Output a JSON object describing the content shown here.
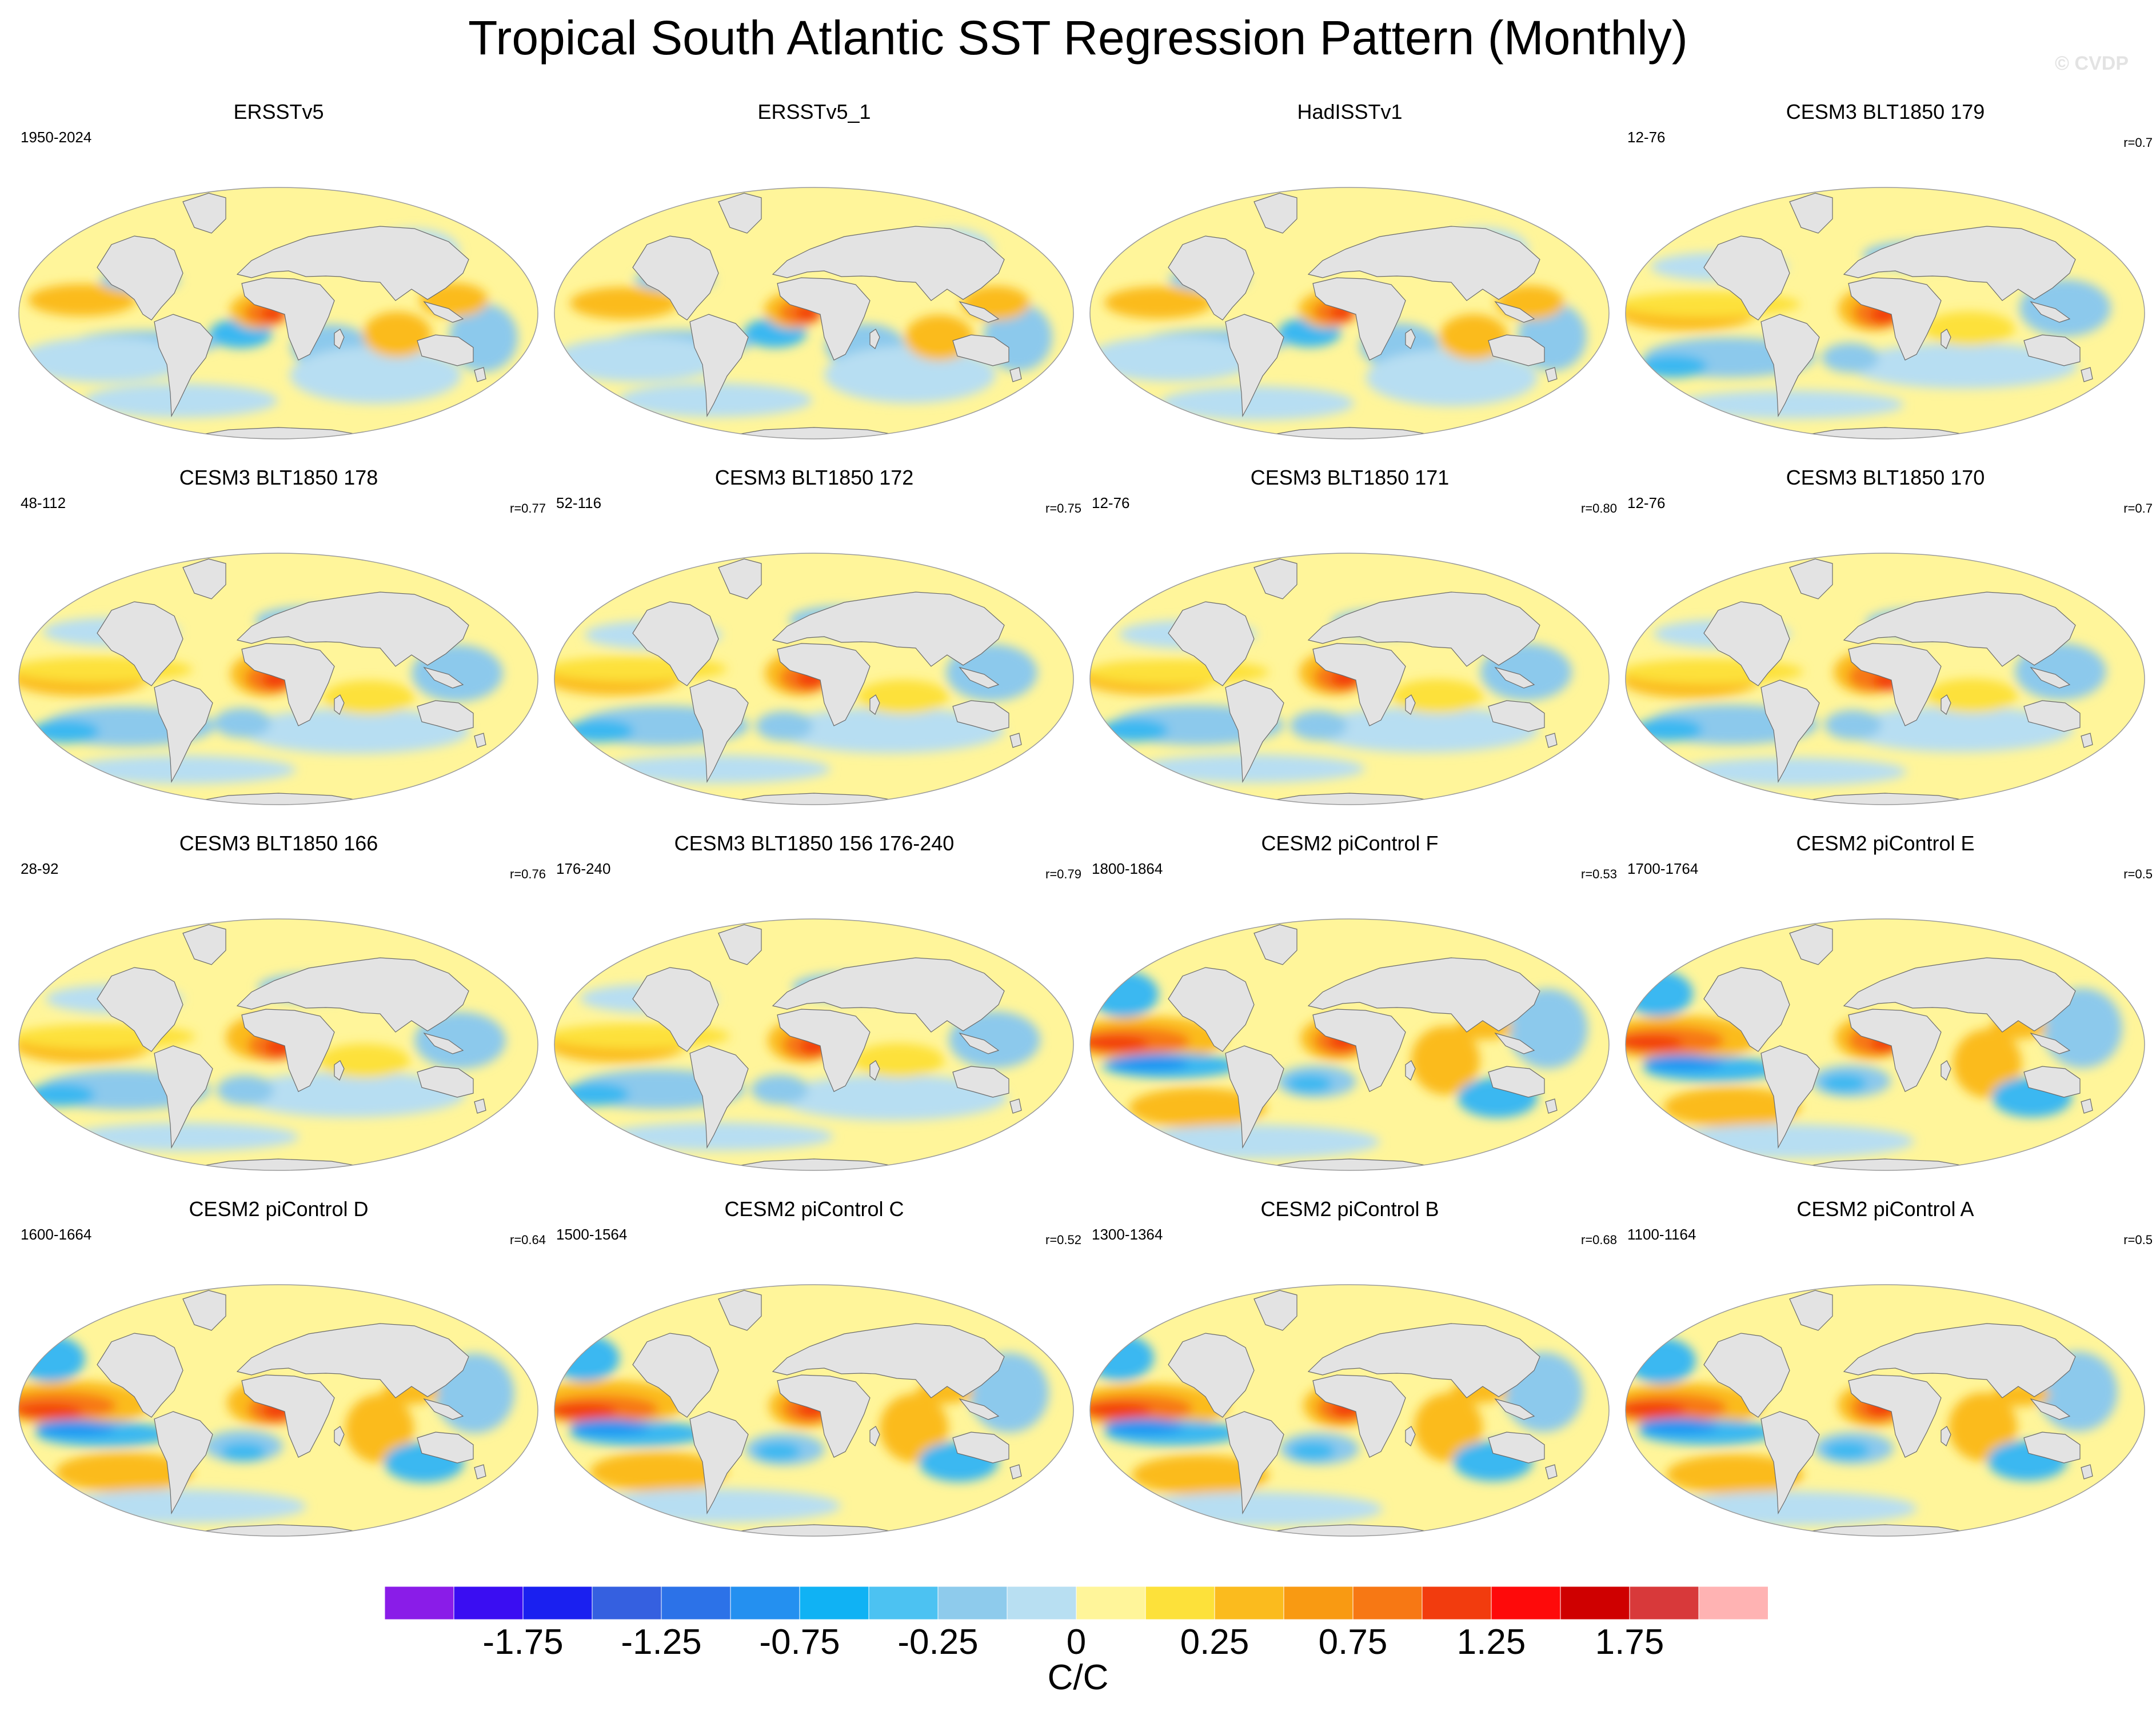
{
  "figure": {
    "title": "Tropical South Atlantic SST Regression Pattern (Monthly)",
    "watermark": "© CVDP"
  },
  "palette": {
    "ocean_light_yellow": "#fff59a",
    "yellow": "#fde13a",
    "amber": "#fbbb1e",
    "orange": "#f99a12",
    "dark_orange": "#f77814",
    "red_orange": "#f23c0e",
    "red": "#e11010",
    "light_blue": "#b7def2",
    "mid_blue": "#8cc9ec",
    "blue": "#3bb8f1",
    "deep_blue": "#1f94f2",
    "land": "#e3e3e3",
    "coast": "#6a6a6a"
  },
  "panels": [
    {
      "title": "ERSSTv5",
      "period": "1950-2024",
      "corr": "",
      "style": "obs"
    },
    {
      "title": "ERSSTv5_1",
      "period": "",
      "corr": "",
      "style": "obs"
    },
    {
      "title": "HadISSTv1",
      "period": "",
      "corr": "",
      "style": "obs"
    },
    {
      "title": "CESM3 BLT1850 179",
      "period": "12-76",
      "corr": "r=0.7",
      "style": "cesm3"
    },
    {
      "title": "CESM3 BLT1850 178",
      "period": "48-112",
      "corr": "r=0.77",
      "style": "cesm3"
    },
    {
      "title": "CESM3 BLT1850 172",
      "period": "52-116",
      "corr": "r=0.75",
      "style": "cesm3"
    },
    {
      "title": "CESM3 BLT1850 171",
      "period": "12-76",
      "corr": "r=0.80",
      "style": "cesm3"
    },
    {
      "title": "CESM3 BLT1850 170",
      "period": "12-76",
      "corr": "r=0.7",
      "style": "cesm3"
    },
    {
      "title": "CESM3 BLT1850 166",
      "period": "28-92",
      "corr": "r=0.76",
      "style": "cesm3"
    },
    {
      "title": "CESM3 BLT1850 156 176-240",
      "period": "176-240",
      "corr": "r=0.79",
      "style": "cesm3"
    },
    {
      "title": "CESM2 piControl F",
      "period": "1800-1864",
      "corr": "r=0.53",
      "style": "cesm2"
    },
    {
      "title": "CESM2 piControl E",
      "period": "1700-1764",
      "corr": "r=0.5",
      "style": "cesm2"
    },
    {
      "title": "CESM2 piControl D",
      "period": "1600-1664",
      "corr": "r=0.64",
      "style": "cesm2"
    },
    {
      "title": "CESM2 piControl C",
      "period": "1500-1564",
      "corr": "r=0.52",
      "style": "cesm2"
    },
    {
      "title": "CESM2 piControl B",
      "period": "1300-1364",
      "corr": "r=0.68",
      "style": "cesm2"
    },
    {
      "title": "CESM2 piControl A",
      "period": "1100-1164",
      "corr": "r=0.5",
      "style": "cesm2"
    }
  ],
  "colorbar": {
    "colors": [
      "#8a1ce8",
      "#3a0df2",
      "#1a20f0",
      "#3560e0",
      "#2c72e8",
      "#2490f0",
      "#10b2f4",
      "#4cc2f2",
      "#8ecbec",
      "#b8dff2",
      "#fff59a",
      "#fde13a",
      "#fbbb1e",
      "#f99a12",
      "#f77814",
      "#f23c0e",
      "#fe0a0a",
      "#cf0000",
      "#d8393a",
      "#ffb3b3"
    ],
    "tick_labels": [
      "-1.75",
      "-1.25",
      "-0.75",
      "-0.25",
      "0",
      "0.25",
      "0.75",
      "1.25",
      "1.75"
    ],
    "units": "C/C"
  }
}
